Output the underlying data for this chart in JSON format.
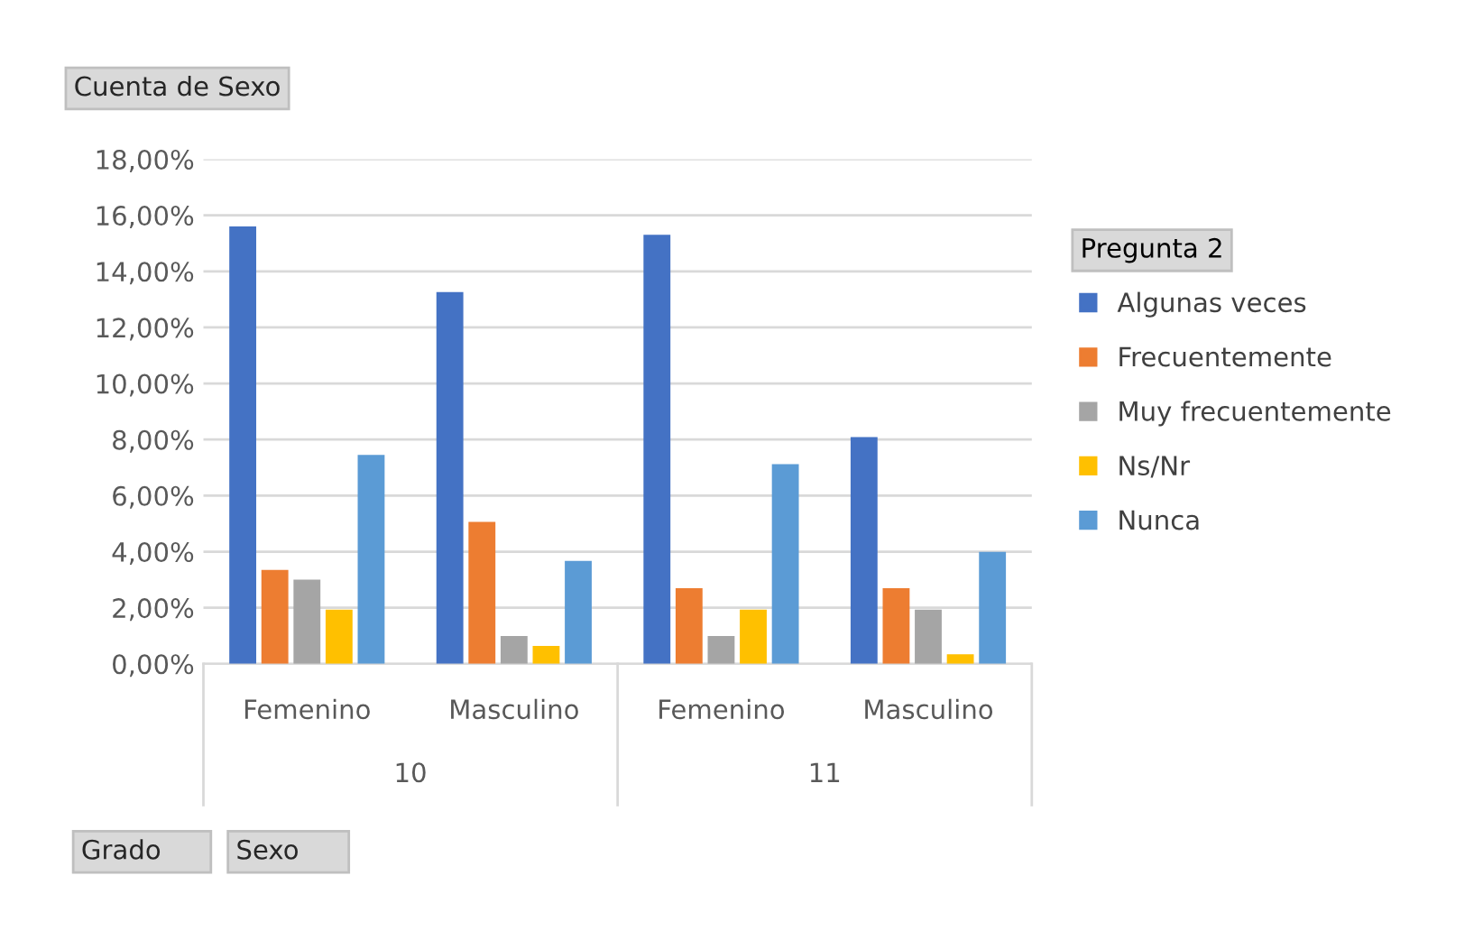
{
  "chart_data": {
    "type": "bar",
    "categories": [
      "Femenino",
      "Masculino",
      "Femenino",
      "Masculino"
    ],
    "legend_title": "Pregunta 2",
    "series": [
      {
        "name": "Algunas veces",
        "color": "#4472c4",
        "values": [
          15.6,
          13.26,
          15.3,
          8.09
        ]
      },
      {
        "name": "Frecuentemente",
        "color": "#ed7d31",
        "values": [
          3.35,
          5.06,
          2.7,
          2.7
        ]
      },
      {
        "name": "Muy frecuentemente",
        "color": "#a5a5a5",
        "values": [
          3.0,
          0.99,
          0.99,
          1.93
        ]
      },
      {
        "name": "Ns/Nr",
        "color": "#ffc000",
        "values": [
          1.93,
          0.64,
          1.93,
          0.34
        ]
      },
      {
        "name": "Nunca",
        "color": "#5b9bd5",
        "values": [
          7.45,
          3.67,
          7.12,
          3.99
        ]
      }
    ],
    "ylim": [
      0,
      18
    ],
    "yticks": [
      {
        "value": 0,
        "label": "0,00%"
      },
      {
        "value": 2,
        "label": "2,00%"
      },
      {
        "value": 4,
        "label": "4,00%"
      },
      {
        "value": 6,
        "label": "6,00%"
      },
      {
        "value": 8,
        "label": "8,00%"
      },
      {
        "value": 10,
        "label": "10,00%"
      },
      {
        "value": 12,
        "label": "12,00%"
      },
      {
        "value": 14,
        "label": "14,00%"
      },
      {
        "value": 16,
        "label": "16,00%"
      },
      {
        "value": 18,
        "label": "18,00%"
      }
    ],
    "grid": "y",
    "legend": "right",
    "annotations": [
      "Cuenta de Sexo",
      "10",
      "11",
      "Grado",
      "Sexo"
    ]
  }
}
